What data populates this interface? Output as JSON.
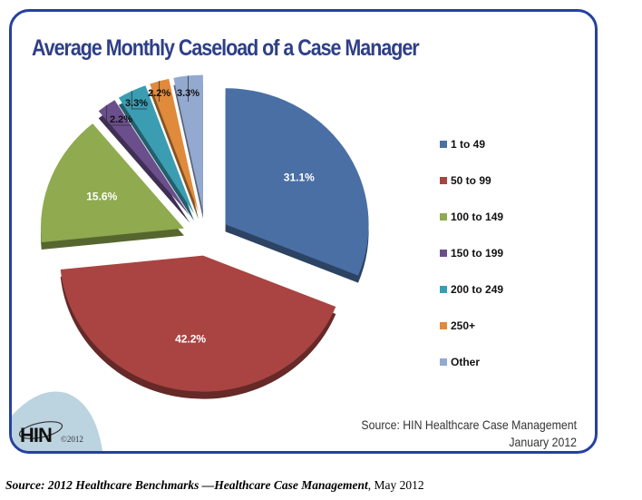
{
  "chart_data": {
    "type": "pie",
    "title": "Average Monthly Caseload of a Case Manager",
    "categories": [
      "1 to 49",
      "50 to 99",
      "100 to 149",
      "150 to 199",
      "200 to 249",
      "250+",
      "Other"
    ],
    "values": [
      31.1,
      42.2,
      15.6,
      2.2,
      3.3,
      2.2,
      3.3
    ],
    "data_labels": [
      "31.1%",
      "42.2%",
      "15.6%",
      "2.2%",
      "3.3%",
      "2.2%",
      "3.3%"
    ],
    "unit": "%",
    "colors": [
      "#4a6fa5",
      "#a94442",
      "#8faa4f",
      "#6b4f8c",
      "#3a9db2",
      "#e08a3c",
      "#94a9cf"
    ],
    "legend_position": "right",
    "start": "top",
    "direction": "clockwise",
    "exploded": true,
    "style_3d": true
  },
  "frame": {
    "border_color": "#2540a0",
    "title_color": "#2e3f87"
  },
  "source_note": {
    "line1": "Source: HIN Healthcare Case Management",
    "line2": "January 2012"
  },
  "logo": {
    "text": "HIN",
    "copyright": "©2012",
    "background_color": "#bcd3e0"
  },
  "caption": {
    "italic_part": "Source: 2012 Healthcare Benchmarks —Healthcare Case Management",
    "plain_part": ", May 2012"
  }
}
